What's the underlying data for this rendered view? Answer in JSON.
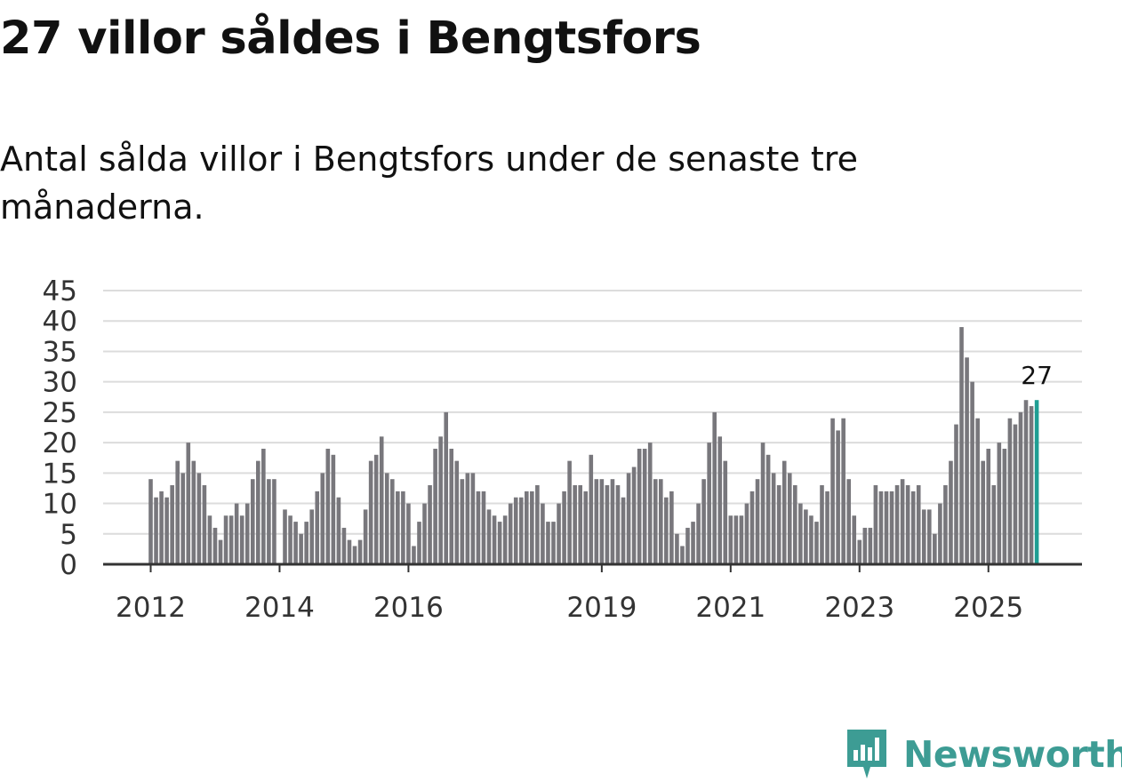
{
  "title": "27 villor såldes i Bengtsfors",
  "subtitle": "Antal sålda villor i Bengtsfors under de senaste tre månaderna.",
  "brand": {
    "name": "Newsworthy",
    "icon": "newsworthy-logo-icon",
    "color": "#3d9c94"
  },
  "colors": {
    "bar": "#78777c",
    "highlight": "#1f9e93",
    "grid": "#dcdcdc",
    "axis": "#333333"
  },
  "chart_data": {
    "type": "bar",
    "title": "27 villor såldes i Bengtsfors",
    "xlabel": "",
    "ylabel": "",
    "ylim": [
      0,
      45
    ],
    "yticks": [
      0,
      5,
      10,
      15,
      20,
      25,
      30,
      35,
      40,
      45
    ],
    "grid": true,
    "start_month": "2012-01",
    "x_ticks": [
      {
        "label": "2012",
        "index": 0
      },
      {
        "label": "2014",
        "index": 24
      },
      {
        "label": "2016",
        "index": 48
      },
      {
        "label": "2019",
        "index": 84
      },
      {
        "label": "2021",
        "index": 108
      },
      {
        "label": "2023",
        "index": 132
      },
      {
        "label": "2025",
        "index": 156
      }
    ],
    "values": [
      14,
      11,
      12,
      11,
      13,
      17,
      15,
      20,
      17,
      15,
      13,
      8,
      6,
      4,
      8,
      8,
      10,
      8,
      10,
      14,
      17,
      19,
      14,
      14,
      0,
      9,
      8,
      7,
      5,
      7,
      9,
      12,
      15,
      19,
      18,
      11,
      6,
      4,
      3,
      4,
      9,
      17,
      18,
      21,
      15,
      14,
      12,
      12,
      10,
      3,
      7,
      10,
      13,
      19,
      21,
      25,
      19,
      17,
      14,
      15,
      15,
      12,
      12,
      9,
      8,
      7,
      8,
      10,
      11,
      11,
      12,
      12,
      13,
      10,
      7,
      7,
      10,
      12,
      17,
      13,
      13,
      12,
      18,
      14,
      14,
      13,
      14,
      13,
      11,
      15,
      16,
      19,
      19,
      20,
      14,
      14,
      11,
      12,
      5,
      3,
      6,
      7,
      10,
      14,
      20,
      25,
      21,
      17,
      8,
      8,
      8,
      10,
      12,
      14,
      20,
      18,
      15,
      13,
      17,
      15,
      13,
      10,
      9,
      8,
      7,
      13,
      12,
      24,
      22,
      24,
      14,
      8,
      4,
      6,
      6,
      13,
      12,
      12,
      12,
      13,
      14,
      13,
      12,
      13,
      9,
      9,
      5,
      10,
      13,
      17,
      23,
      39,
      34,
      30,
      24,
      17,
      19,
      13,
      20,
      19,
      24,
      23,
      25,
      27,
      26,
      27
    ],
    "highlight": {
      "index": 165,
      "value": 27,
      "label": "27"
    }
  }
}
